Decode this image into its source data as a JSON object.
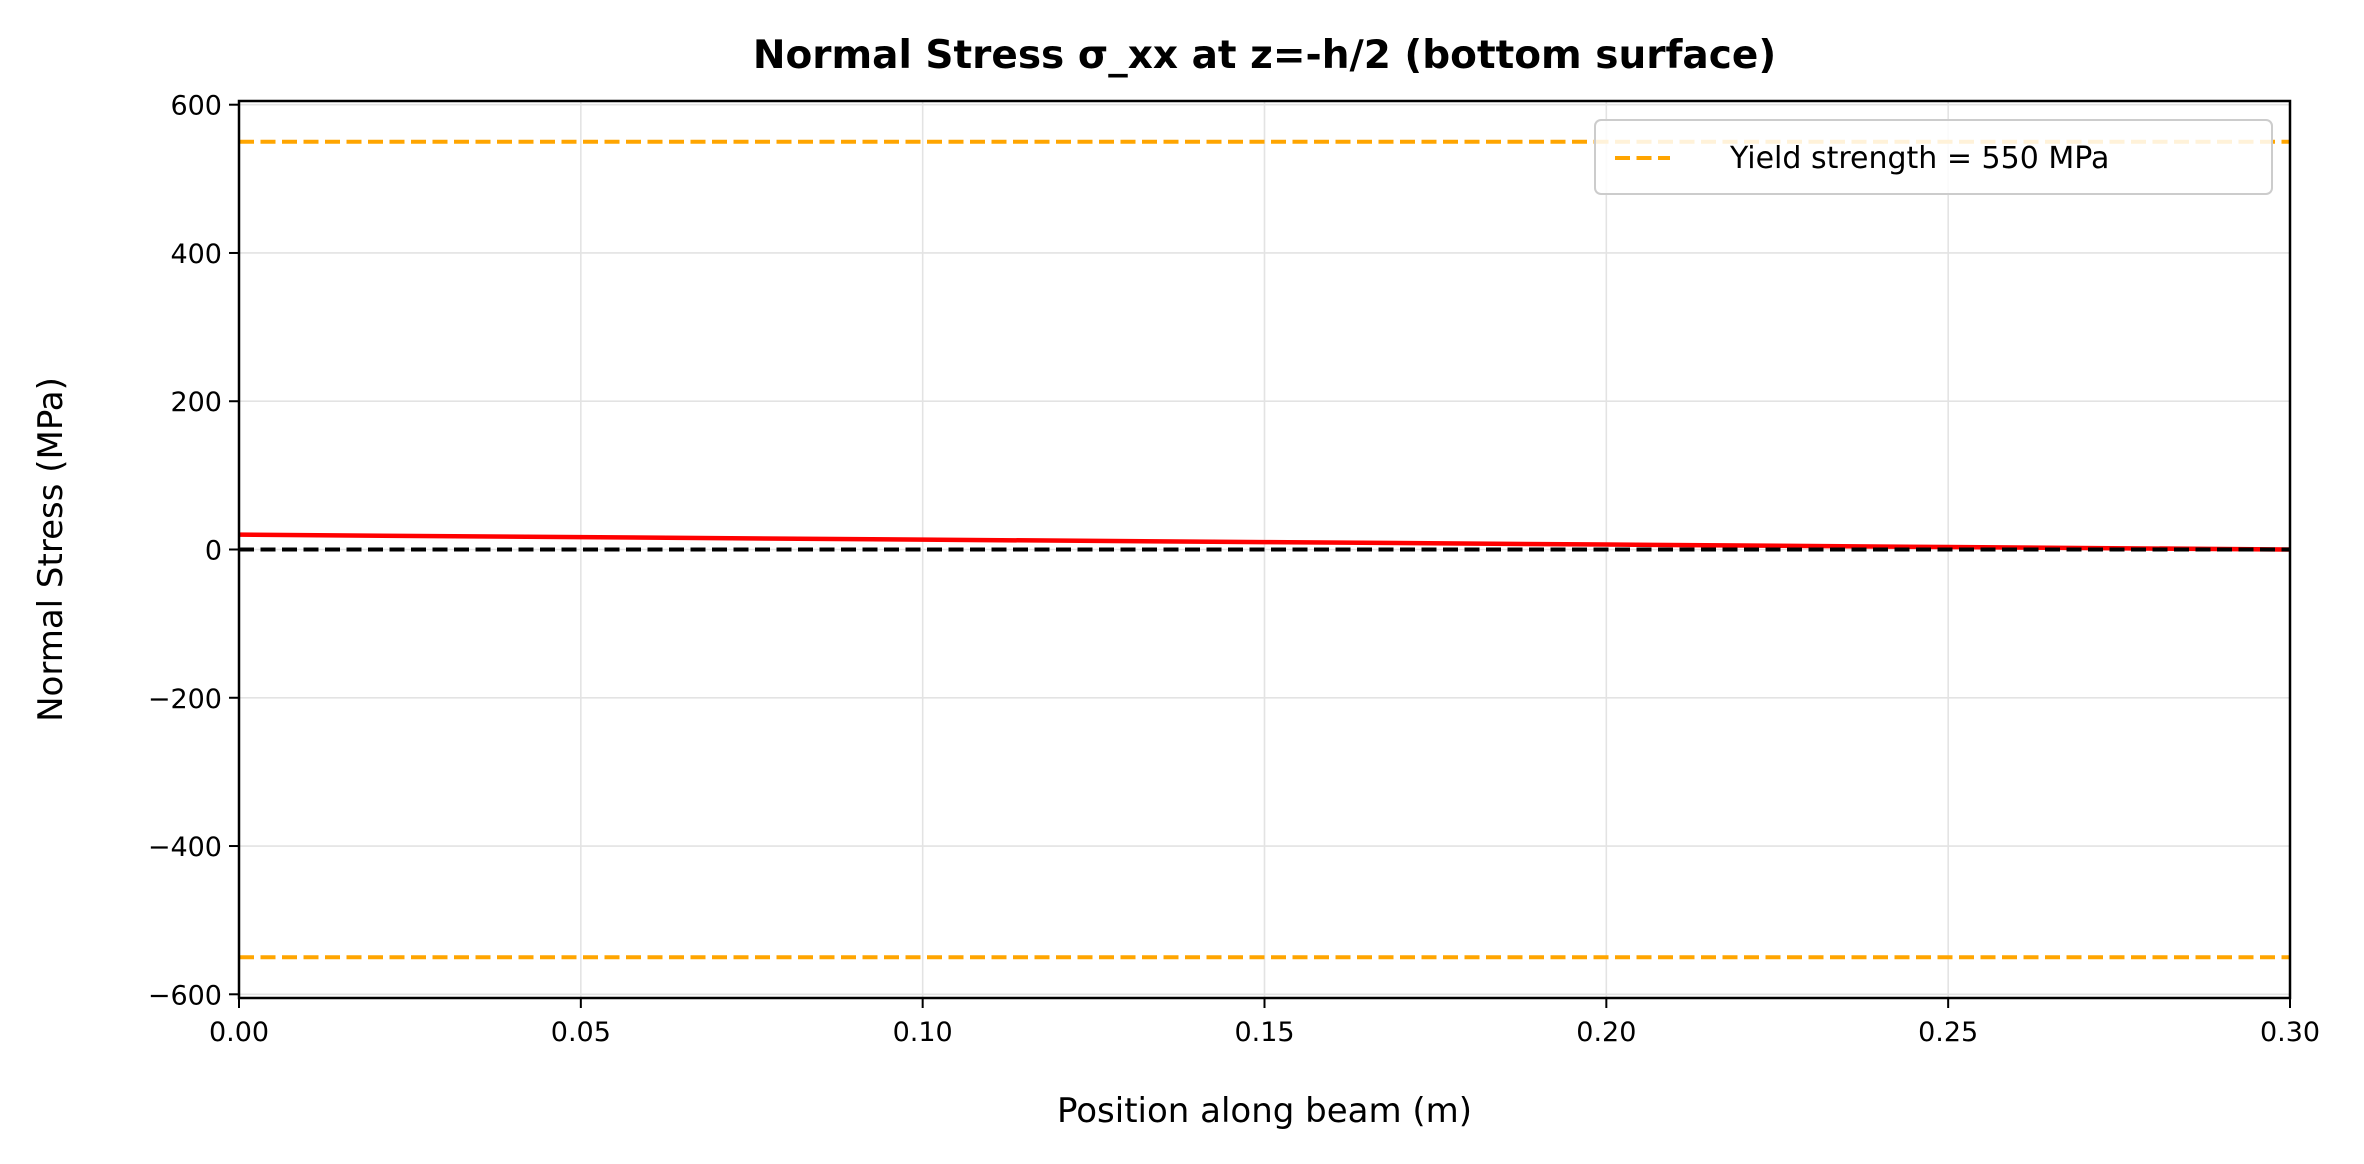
{
  "chart_data": {
    "type": "line",
    "title": "Normal Stress σ_xx at z=-h/2 (bottom surface)",
    "xlabel": "Position along beam (m)",
    "ylabel": "Normal Stress (MPa)",
    "xlim": [
      0,
      0.3
    ],
    "ylim": [
      -605,
      605
    ],
    "xticks": [
      0,
      0.05,
      0.1,
      0.15,
      0.2,
      0.25,
      0.3
    ],
    "xtick_labels": [
      "0.00",
      "0.05",
      "0.10",
      "0.15",
      "0.20",
      "0.25",
      "0.30"
    ],
    "yticks": [
      -600,
      -400,
      -200,
      0,
      200,
      400,
      600
    ],
    "ytick_labels": [
      "−600",
      "−400",
      "−200",
      "0",
      "200",
      "400",
      "600"
    ],
    "grid": true,
    "legend_position": "top-right",
    "series": [
      {
        "color": "#ff0000",
        "style": "solid",
        "x": [
          0,
          0.05,
          0.1,
          0.15,
          0.2,
          0.25,
          0.3
        ],
        "y": [
          20,
          16.7,
          13.3,
          10,
          6.7,
          3.3,
          0
        ]
      }
    ],
    "reference_lines": [
      {
        "name": "Yield strength = 550 MPa",
        "y": 550,
        "color": "#ffa500",
        "style": "dashed",
        "in_legend": true
      },
      {
        "y": -550,
        "color": "#ffa500",
        "style": "dashed",
        "in_legend": false
      },
      {
        "y": 0,
        "color": "#000000",
        "style": "dashed",
        "in_legend": false
      }
    ]
  }
}
